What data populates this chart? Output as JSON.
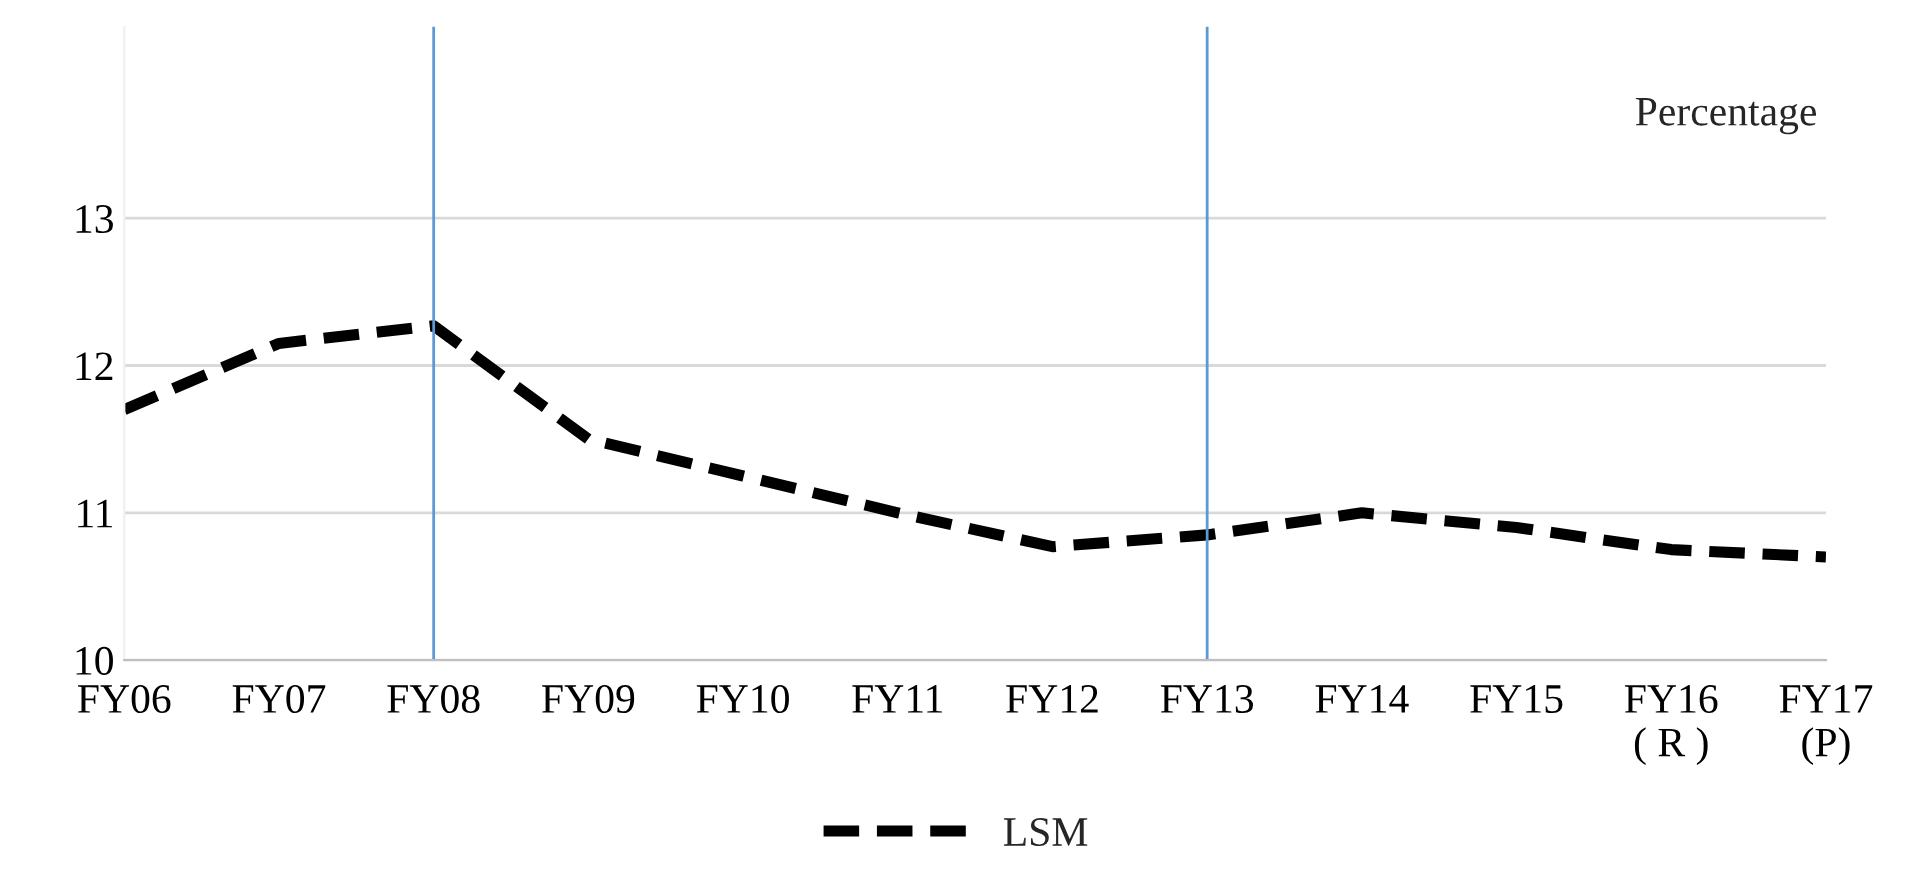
{
  "chart_data": {
    "type": "line",
    "categories": [
      "FY06",
      "FY07",
      "FY08",
      "FY09",
      "FY10",
      "FY11",
      "FY12",
      "FY13",
      "FY14",
      "FY15",
      "FY16 ( R )",
      "FY17 (P)"
    ],
    "series": [
      {
        "name": "LSM",
        "color": "#000000",
        "values": [
          11.7,
          12.15,
          12.27,
          11.5,
          11.25,
          11.0,
          10.77,
          10.85,
          11.0,
          10.9,
          10.75,
          10.7
        ]
      }
    ],
    "ylim": [
      10,
      14.3
    ],
    "yticks": [
      10,
      11,
      12,
      13
    ],
    "grid": "y",
    "legend": "bottom",
    "line_style": "dashed",
    "marker": "none",
    "annotations": [
      "Percentage"
    ],
    "ref_lines": [
      {
        "axis": "x",
        "value": "FY08",
        "color": "#5b9bd5"
      },
      {
        "axis": "x",
        "value": "FY13",
        "color": "#5b9bd5"
      }
    ]
  }
}
